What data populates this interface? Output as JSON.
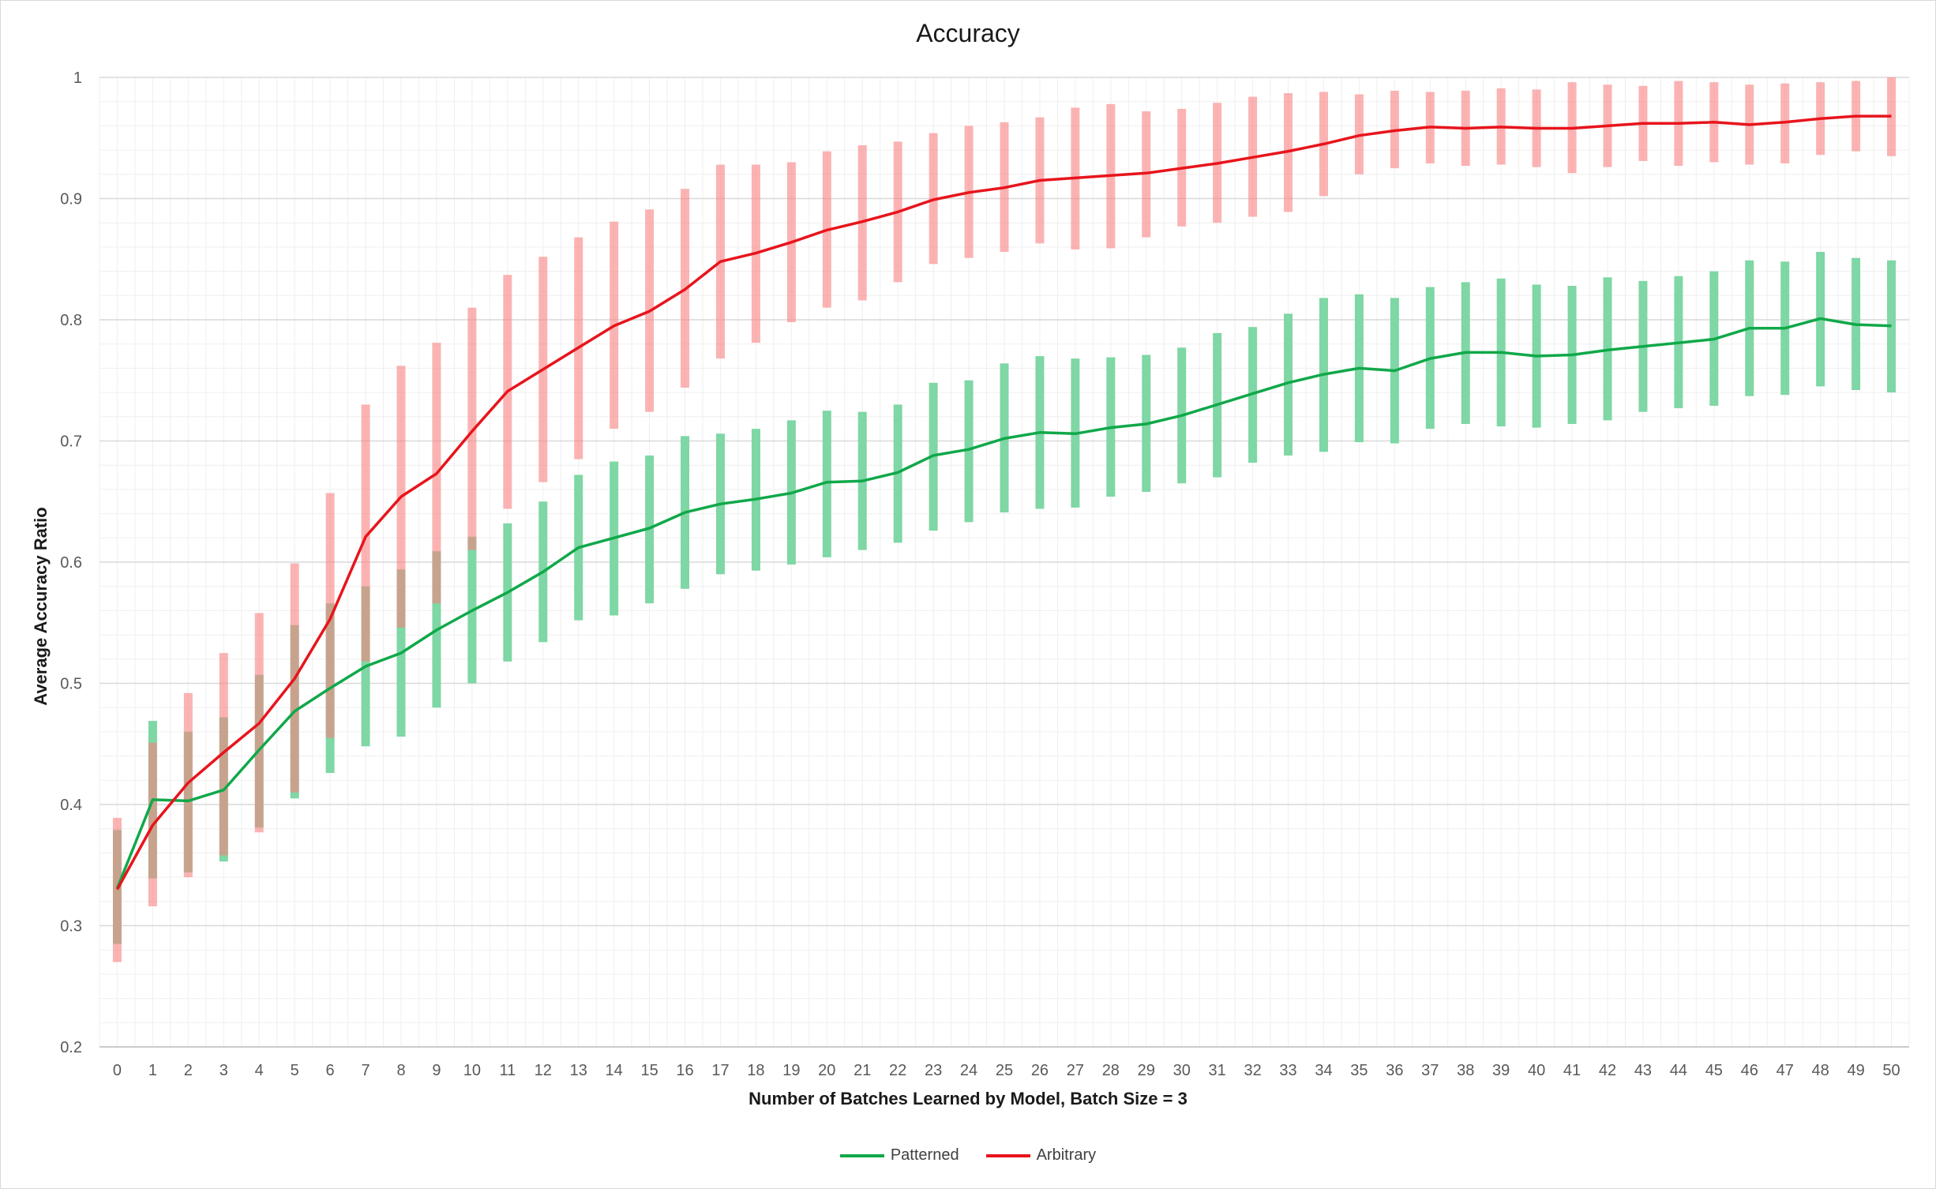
{
  "chart_data": {
    "type": "line",
    "title": "Accuracy",
    "xlabel": "Number of Batches Learned by Model, Batch Size = 3",
    "ylabel": "Average Accuracy Ratio",
    "ylim": [
      0.2,
      1.0
    ],
    "xlim": [
      0,
      50
    ],
    "yticks": [
      "0.2",
      "0.3",
      "0.4",
      "0.5",
      "0.6",
      "0.7",
      "0.8",
      "0.9",
      "1"
    ],
    "x": [
      0,
      1,
      2,
      3,
      4,
      5,
      6,
      7,
      8,
      9,
      10,
      11,
      12,
      13,
      14,
      15,
      16,
      17,
      18,
      19,
      20,
      21,
      22,
      23,
      24,
      25,
      26,
      27,
      28,
      29,
      30,
      31,
      32,
      33,
      34,
      35,
      36,
      37,
      38,
      39,
      40,
      41,
      42,
      43,
      44,
      45,
      46,
      47,
      48,
      49,
      50
    ],
    "grid": "major and minor",
    "legend_position": "bottom",
    "series": [
      {
        "name": "Patterned",
        "color": "#10a84a",
        "bar_color": "#7ed7a4",
        "values": [
          0.331,
          0.404,
          0.403,
          0.412,
          0.445,
          0.477,
          0.496,
          0.514,
          0.525,
          0.544,
          0.56,
          0.575,
          0.592,
          0.612,
          0.62,
          0.628,
          0.641,
          0.648,
          0.652,
          0.657,
          0.666,
          0.667,
          0.674,
          0.688,
          0.693,
          0.702,
          0.707,
          0.706,
          0.711,
          0.714,
          0.721,
          0.73,
          0.739,
          0.748,
          0.755,
          0.76,
          0.758,
          0.768,
          0.773,
          0.773,
          0.77,
          0.771,
          0.775,
          0.778,
          0.781,
          0.784,
          0.793,
          0.793,
          0.801,
          0.796,
          0.795
        ],
        "low": [
          0.285,
          0.339,
          0.344,
          0.353,
          0.381,
          0.405,
          0.426,
          0.448,
          0.456,
          0.48,
          0.5,
          0.518,
          0.534,
          0.552,
          0.556,
          0.566,
          0.578,
          0.59,
          0.593,
          0.598,
          0.604,
          0.61,
          0.616,
          0.626,
          0.633,
          0.641,
          0.644,
          0.645,
          0.654,
          0.658,
          0.665,
          0.67,
          0.682,
          0.688,
          0.691,
          0.699,
          0.698,
          0.71,
          0.714,
          0.712,
          0.711,
          0.714,
          0.717,
          0.724,
          0.727,
          0.729,
          0.737,
          0.738,
          0.745,
          0.742,
          0.74
        ],
        "high": [
          0.379,
          0.469,
          0.46,
          0.472,
          0.507,
          0.548,
          0.566,
          0.58,
          0.594,
          0.609,
          0.621,
          0.632,
          0.65,
          0.672,
          0.683,
          0.688,
          0.704,
          0.706,
          0.71,
          0.717,
          0.725,
          0.724,
          0.73,
          0.748,
          0.75,
          0.764,
          0.77,
          0.768,
          0.769,
          0.771,
          0.777,
          0.789,
          0.794,
          0.805,
          0.818,
          0.821,
          0.818,
          0.827,
          0.831,
          0.834,
          0.829,
          0.828,
          0.835,
          0.832,
          0.836,
          0.84,
          0.849,
          0.848,
          0.856,
          0.851,
          0.849
        ]
      },
      {
        "name": "Arbitrary",
        "color": "#e8141c",
        "bar_color": "#f98080",
        "values": [
          0.33,
          0.383,
          0.418,
          0.443,
          0.467,
          0.504,
          0.553,
          0.621,
          0.654,
          0.673,
          0.708,
          0.741,
          0.759,
          0.777,
          0.795,
          0.807,
          0.825,
          0.848,
          0.855,
          0.864,
          0.874,
          0.881,
          0.889,
          0.899,
          0.905,
          0.909,
          0.915,
          0.917,
          0.919,
          0.921,
          0.925,
          0.929,
          0.934,
          0.939,
          0.945,
          0.952,
          0.956,
          0.959,
          0.958,
          0.959,
          0.958,
          0.958,
          0.96,
          0.962,
          0.962,
          0.963,
          0.961,
          0.963,
          0.966,
          0.968,
          0.968
        ],
        "low": [
          0.27,
          0.316,
          0.34,
          0.358,
          0.377,
          0.41,
          0.455,
          0.518,
          0.546,
          0.566,
          0.61,
          0.644,
          0.666,
          0.685,
          0.71,
          0.724,
          0.744,
          0.768,
          0.781,
          0.798,
          0.81,
          0.816,
          0.831,
          0.846,
          0.851,
          0.856,
          0.863,
          0.858,
          0.859,
          0.868,
          0.877,
          0.88,
          0.885,
          0.889,
          0.902,
          0.92,
          0.925,
          0.929,
          0.927,
          0.928,
          0.926,
          0.921,
          0.926,
          0.931,
          0.927,
          0.93,
          0.928,
          0.929,
          0.936,
          0.939,
          0.935
        ],
        "high": [
          0.389,
          0.451,
          0.492,
          0.525,
          0.558,
          0.599,
          0.657,
          0.73,
          0.762,
          0.781,
          0.81,
          0.837,
          0.852,
          0.868,
          0.881,
          0.891,
          0.908,
          0.928,
          0.928,
          0.93,
          0.939,
          0.944,
          0.947,
          0.954,
          0.96,
          0.963,
          0.967,
          0.975,
          0.978,
          0.972,
          0.974,
          0.979,
          0.984,
          0.987,
          0.988,
          0.986,
          0.989,
          0.988,
          0.989,
          0.991,
          0.99,
          0.996,
          0.994,
          0.993,
          0.997,
          0.996,
          0.994,
          0.995,
          0.996,
          0.997,
          1.0
        ]
      }
    ]
  }
}
